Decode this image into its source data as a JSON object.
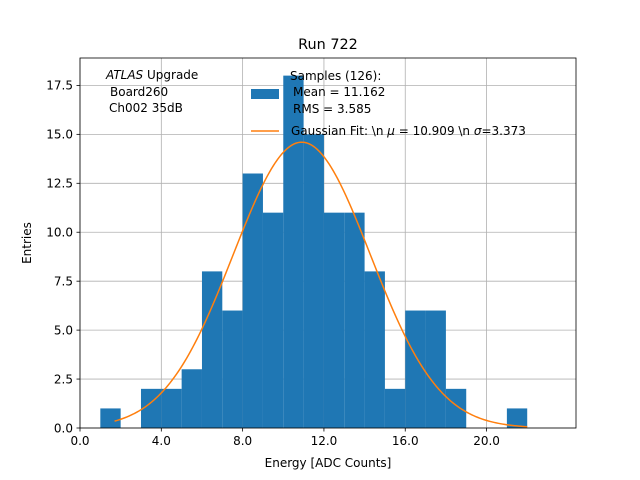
{
  "chart_data": {
    "type": "bar",
    "title": "Run 722",
    "xlabel": "Energy [ADC Counts]",
    "ylabel": "Entries",
    "xlim": [
      0.0,
      24.4
    ],
    "ylim": [
      0.0,
      18.9
    ],
    "grid": true,
    "xticks": [
      0.0,
      4.0,
      8.0,
      12.0,
      16.0,
      20.0
    ],
    "xtick_labels": [
      "0.0",
      "4.0",
      "8.0",
      "12.0",
      "16.0",
      "20.0"
    ],
    "yticks": [
      0.0,
      2.5,
      5.0,
      7.5,
      10.0,
      12.5,
      15.0,
      17.5
    ],
    "ytick_labels": [
      "0.0",
      "2.5",
      "5.0",
      "7.5",
      "10.0",
      "12.5",
      "15.0",
      "17.5"
    ],
    "bin_width": 1.0,
    "bins": [
      {
        "x": 1.0,
        "count": 1
      },
      {
        "x": 3.0,
        "count": 2
      },
      {
        "x": 4.0,
        "count": 2
      },
      {
        "x": 5.0,
        "count": 3
      },
      {
        "x": 6.0,
        "count": 8
      },
      {
        "x": 7.0,
        "count": 6
      },
      {
        "x": 8.0,
        "count": 13
      },
      {
        "x": 9.0,
        "count": 11
      },
      {
        "x": 10.0,
        "count": 18
      },
      {
        "x": 11.0,
        "count": 15
      },
      {
        "x": 12.0,
        "count": 11
      },
      {
        "x": 13.0,
        "count": 11
      },
      {
        "x": 14.0,
        "count": 8
      },
      {
        "x": 15.0,
        "count": 2
      },
      {
        "x": 16.0,
        "count": 6
      },
      {
        "x": 17.0,
        "count": 6
      },
      {
        "x": 18.0,
        "count": 2
      },
      {
        "x": 21.0,
        "count": 1
      }
    ],
    "fit": {
      "mu": 10.909,
      "sigma": 3.373,
      "amplitude": 14.6,
      "x_range": [
        1.7,
        22.0
      ]
    },
    "colors": {
      "bars": "#1f77b4",
      "fit": "#ff7f0e",
      "grid": "#b0b0b0"
    },
    "annotation": {
      "atlas": "ATLAS",
      "upgrade": " Upgrade",
      "line2": "Board260",
      "line3": "Ch002 35dB"
    },
    "legend": {
      "samples_title": "Samples (126):",
      "mean": "Mean = 11.162",
      "rms": "RMS = 3.585",
      "fit_prefix": "Gaussian Fit: \\n ",
      "mu_symbol": "μ",
      "fit_mid": " = 10.909 \\n ",
      "sigma_symbol": "σ",
      "fit_suffix": "=3.373"
    }
  }
}
